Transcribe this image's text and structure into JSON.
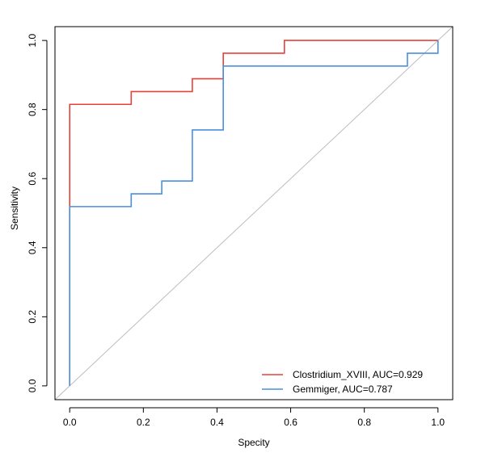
{
  "chart_data": {
    "type": "line",
    "title": "",
    "xlabel": "Specity",
    "ylabel": "Sensitivity",
    "xlim": [
      -0.04,
      1.04
    ],
    "ylim": [
      -0.04,
      1.04
    ],
    "x_ticks": [
      "0.0",
      "0.2",
      "0.4",
      "0.6",
      "0.8",
      "1.0"
    ],
    "y_ticks": [
      "0.0",
      "0.2",
      "0.4",
      "0.6",
      "0.8",
      "1.0"
    ],
    "grid": false,
    "legend_position": "bottom-right",
    "diagonal_color": "#bdbdbd",
    "series": [
      {
        "name": "Clostridium_XVIII, AUC=0.929",
        "color": "#e8413a",
        "points": [
          [
            0.0,
            0.0
          ],
          [
            0.0,
            0.815
          ],
          [
            0.167,
            0.815
          ],
          [
            0.167,
            0.852
          ],
          [
            0.333,
            0.852
          ],
          [
            0.333,
            0.889
          ],
          [
            0.417,
            0.889
          ],
          [
            0.417,
            0.963
          ],
          [
            0.583,
            0.963
          ],
          [
            0.583,
            1.0
          ],
          [
            1.0,
            1.0
          ]
        ]
      },
      {
        "name": "Gemmiger, AUC=0.787",
        "color": "#4a8fe0",
        "points": [
          [
            0.0,
            0.0
          ],
          [
            0.0,
            0.519
          ],
          [
            0.167,
            0.519
          ],
          [
            0.167,
            0.556
          ],
          [
            0.25,
            0.556
          ],
          [
            0.25,
            0.593
          ],
          [
            0.333,
            0.593
          ],
          [
            0.333,
            0.741
          ],
          [
            0.417,
            0.741
          ],
          [
            0.417,
            0.926
          ],
          [
            0.917,
            0.926
          ],
          [
            0.917,
            0.963
          ],
          [
            1.0,
            0.963
          ],
          [
            1.0,
            1.0
          ]
        ]
      }
    ]
  }
}
